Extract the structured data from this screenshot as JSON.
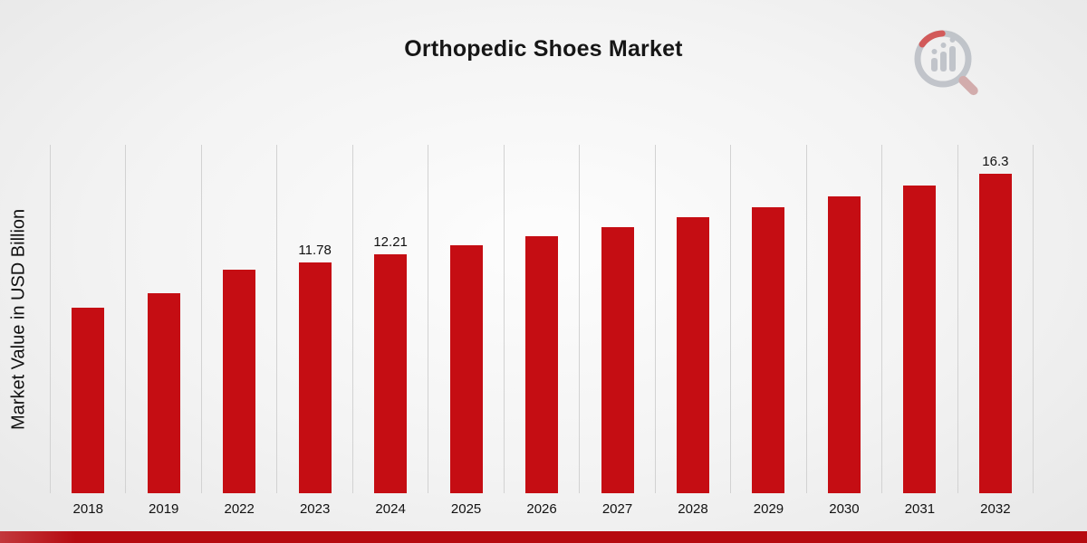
{
  "title": "Orthopedic Shoes Market",
  "ylabel": "Market Value in USD Billion",
  "brand": {
    "logo": "bar-chart-magnifier-logo"
  },
  "footer": {
    "accent_color": "#b60a10"
  },
  "chart_data": {
    "type": "bar",
    "title": "Orthopedic Shoes Market",
    "ylabel": "Market Value in USD Billion",
    "xlabel": "",
    "categories": [
      "2018",
      "2019",
      "2022",
      "2023",
      "2024",
      "2025",
      "2026",
      "2027",
      "2028",
      "2029",
      "2030",
      "2031",
      "2032"
    ],
    "values": [
      9.5,
      10.2,
      11.4,
      11.78,
      12.21,
      12.66,
      13.13,
      13.61,
      14.11,
      14.63,
      15.17,
      15.73,
      16.3
    ],
    "data_labels": {
      "2023": "11.78",
      "2024": "12.21",
      "2032": "16.3"
    },
    "bar_color": "#c50d13",
    "gridline_color": "#d2d2d2",
    "grid": "vertical",
    "legend": "none",
    "ylim": [
      0,
      17.8
    ]
  }
}
